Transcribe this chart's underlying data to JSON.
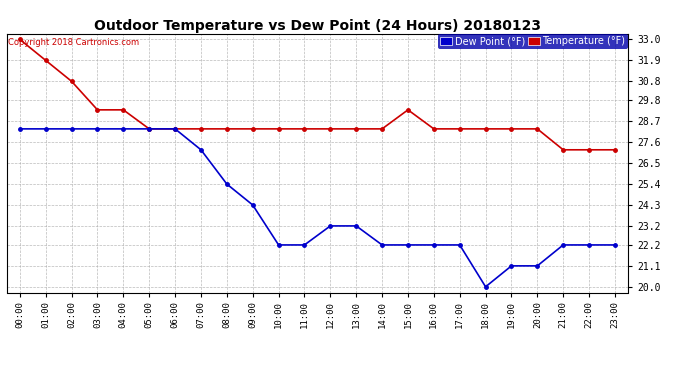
{
  "title": "Outdoor Temperature vs Dew Point (24 Hours) 20180123",
  "copyright": "Copyright 2018 Cartronics.com",
  "x_labels": [
    "00:00",
    "01:00",
    "02:00",
    "03:00",
    "04:00",
    "05:00",
    "06:00",
    "07:00",
    "08:00",
    "09:00",
    "10:00",
    "11:00",
    "12:00",
    "13:00",
    "14:00",
    "15:00",
    "16:00",
    "17:00",
    "18:00",
    "19:00",
    "20:00",
    "21:00",
    "22:00",
    "23:00"
  ],
  "temperature": [
    33.0,
    31.9,
    30.8,
    29.3,
    29.3,
    28.3,
    28.3,
    28.3,
    28.3,
    28.3,
    28.3,
    28.3,
    28.3,
    28.3,
    28.3,
    29.3,
    28.3,
    28.3,
    28.3,
    28.3,
    28.3,
    27.2,
    27.2,
    27.2
  ],
  "dew_point": [
    28.3,
    28.3,
    28.3,
    28.3,
    28.3,
    28.3,
    28.3,
    27.2,
    25.4,
    24.3,
    22.2,
    22.2,
    23.2,
    23.2,
    22.2,
    22.2,
    22.2,
    22.2,
    20.0,
    21.1,
    21.1,
    22.2,
    22.2,
    22.2
  ],
  "temp_color": "#cc0000",
  "dew_color": "#0000cc",
  "ylim_min": 19.7,
  "ylim_max": 33.3,
  "yticks": [
    20.0,
    21.1,
    22.2,
    23.2,
    24.3,
    25.4,
    26.5,
    27.6,
    28.7,
    29.8,
    30.8,
    31.9,
    33.0
  ],
  "background_color": "#ffffff",
  "grid_color": "#aaaaaa",
  "legend_dew_label": "Dew Point (°F)",
  "legend_temp_label": "Temperature (°F)"
}
